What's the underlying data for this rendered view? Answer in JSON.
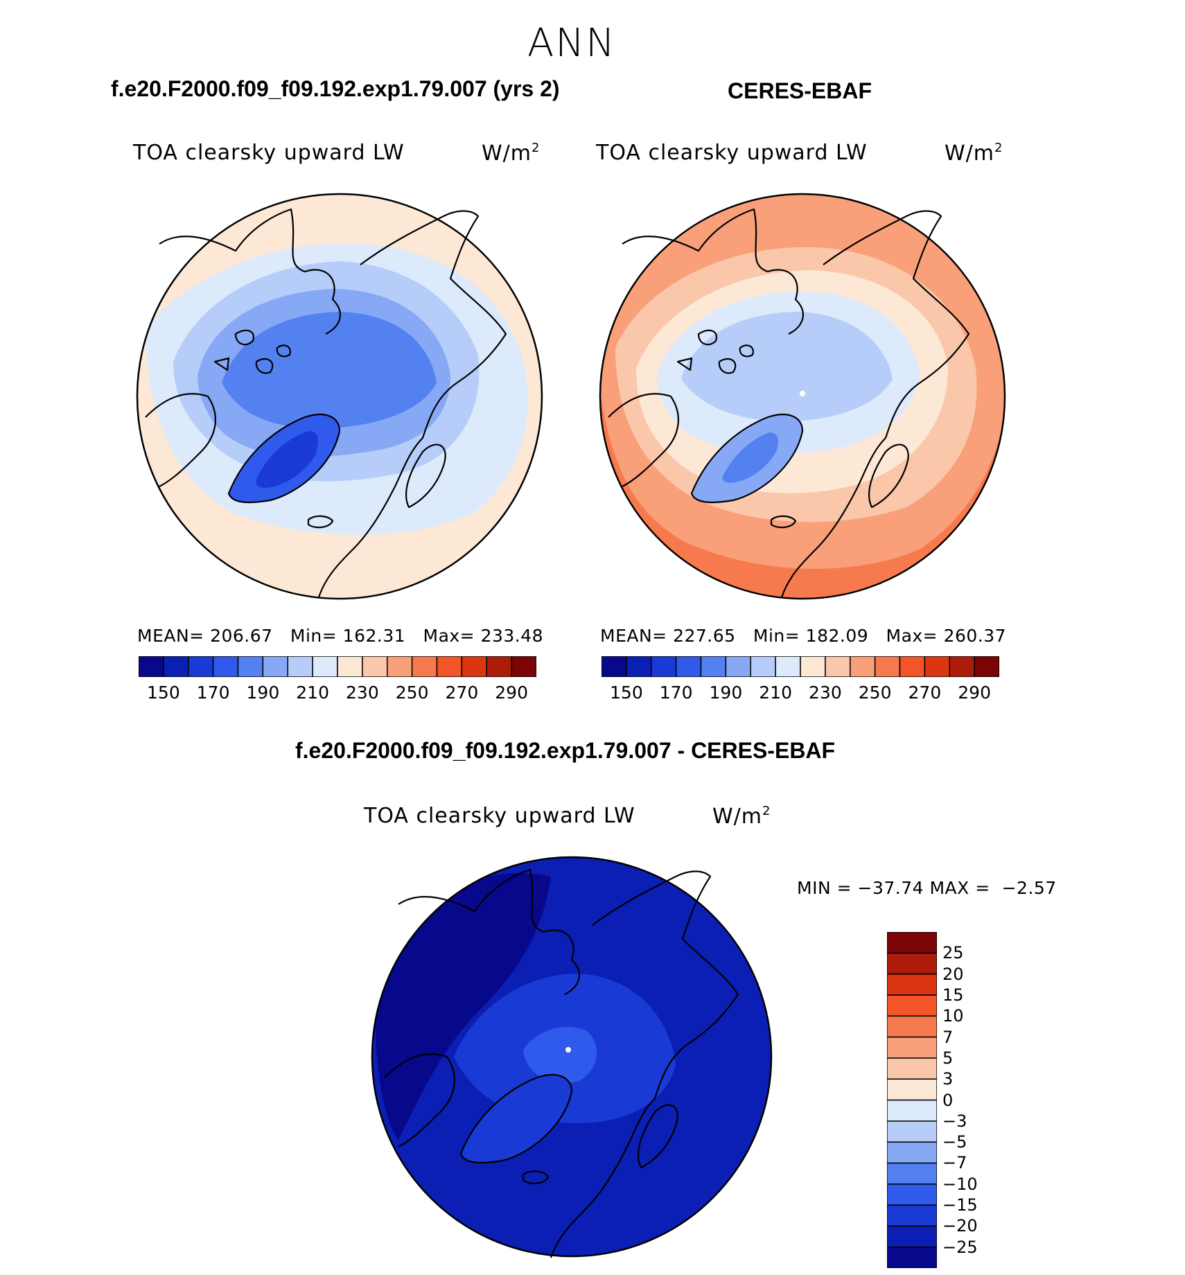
{
  "main_title": "ANN",
  "panels": [
    {
      "title": "f.e20.F2000.f09_f09.192.exp1.79.007 (yrs 2)",
      "subtitle": "TOA clearsky upward LW",
      "units_base": "W/m",
      "units_exp": "2",
      "stats": {
        "mean_label": "MEAN=",
        "mean": "206.67",
        "min_label": "Min=",
        "min": "162.31",
        "max_label": "Max=",
        "max": "233.48"
      }
    },
    {
      "title": "CERES-EBAF",
      "subtitle": "TOA clearsky upward LW",
      "units_base": "W/m",
      "units_exp": "2",
      "stats": {
        "mean_label": "MEAN=",
        "mean": "227.65",
        "min_label": "Min=",
        "min": "182.09",
        "max_label": "Max=",
        "max": "260.37"
      }
    },
    {
      "title": "f.e20.F2000.f09_f09.192.exp1.79.007 - CERES-EBAF",
      "subtitle": "TOA clearsky upward LW",
      "units_base": "W/m",
      "units_exp": "2",
      "stats": {
        "min_label": "MIN =",
        "min": "−37.74",
        "max_label": "MAX =",
        "max": "−2.57"
      }
    }
  ],
  "colorbar_main": {
    "colors": [
      "#08088c",
      "#0c1fb4",
      "#1a3ad6",
      "#2f5aec",
      "#5382f0",
      "#87a8f5",
      "#b5cdf8",
      "#dceafb",
      "#fde8d6",
      "#fbc7ab",
      "#f9a07a",
      "#f77a4e",
      "#f35428",
      "#dc3512",
      "#ad1c08",
      "#7c0306"
    ],
    "tick_labels": [
      "150",
      "170",
      "190",
      "210",
      "230",
      "250",
      "270",
      "290"
    ]
  },
  "colorbar_diff": {
    "colors": [
      "#08088c",
      "#0c1fb4",
      "#1a3ad6",
      "#2f5aec",
      "#5382f0",
      "#87a8f5",
      "#b5cdf8",
      "#dceafb",
      "#fde8d6",
      "#fbc7ab",
      "#f9a07a",
      "#f77a4e",
      "#f35428",
      "#dc3512",
      "#ad1c08",
      "#7c0306"
    ],
    "tick_labels": [
      "25",
      "20",
      "15",
      "10",
      "7",
      "5",
      "3",
      "0",
      "−3",
      "−5",
      "−7",
      "−10",
      "−15",
      "−20",
      "−25"
    ]
  },
  "chart_data": [
    {
      "type": "heatmap",
      "title": "f.e20.F2000.f09_f09.192.exp1.79.007 (yrs 2)",
      "projection": "north polar stereographic",
      "levels": [
        150,
        160,
        170,
        180,
        190,
        200,
        210,
        220,
        230,
        240,
        250,
        260,
        270,
        280,
        290
      ],
      "mean": 206.67,
      "min": 162.31,
      "max": 233.48
    },
    {
      "type": "heatmap",
      "title": "CERES-EBAF",
      "projection": "north polar stereographic",
      "levels": [
        150,
        160,
        170,
        180,
        190,
        200,
        210,
        220,
        230,
        240,
        250,
        260,
        270,
        280,
        290
      ],
      "mean": 227.65,
      "min": 182.09,
      "max": 260.37
    },
    {
      "type": "heatmap",
      "title": "f.e20.F2000.f09_f09.192.exp1.79.007 - CERES-EBAF",
      "projection": "north polar stereographic",
      "levels": [
        -25,
        -20,
        -15,
        -10,
        -7,
        -5,
        -3,
        0,
        3,
        5,
        7,
        10,
        15,
        20,
        25
      ],
      "min": -37.74,
      "max": -2.57
    }
  ]
}
